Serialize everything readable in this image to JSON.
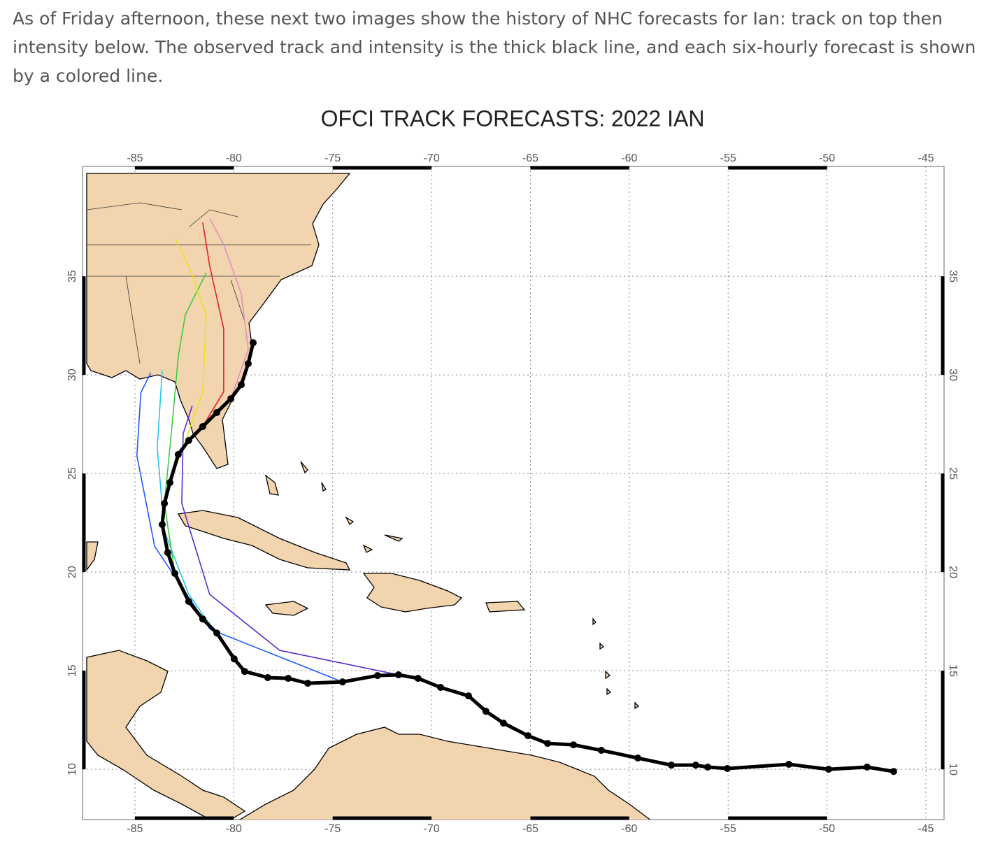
{
  "text": "As of Friday afternoon, these next two images show the history of NHC forecasts for Ian: track on top then intensity below.  The observed track and intensity is the thick black line, and each six-hourly forecast is shown by a colored line.",
  "chart_data": {
    "type": "line",
    "title": "OFCI TRACK FORECASTS: 2022 IAN",
    "xlim": [
      -87.65,
      -44.08
    ],
    "ylim": [
      7.45,
      40.57
    ],
    "xticks": [
      -85,
      -80,
      -75,
      -70,
      -65,
      -60,
      -55,
      -50,
      -45
    ],
    "yticks": [
      10,
      15,
      20,
      25,
      30,
      35
    ],
    "grid": true,
    "series": [
      {
        "color": "#1e5cff",
        "x": [
          -74.5,
          -81.2,
          -84.0,
          -84.9,
          -84.7,
          -84.2
        ],
        "values": [
          14.43,
          17.1,
          21.3,
          25.9,
          29.1,
          30.1
        ]
      },
      {
        "color": "#5a2bd0",
        "x": [
          -71.67,
          -77.68,
          -81.22,
          -82.63,
          -82.56,
          -82.1
        ],
        "values": [
          14.79,
          16.03,
          18.87,
          23.48,
          27.02,
          28.44
        ]
      },
      {
        "color": "#22c8e8",
        "x": [
          -79.98,
          -82.28,
          -83.51,
          -83.87,
          -83.62
        ],
        "values": [
          15.6,
          18.87,
          22.06,
          26.31,
          30.21
        ]
      },
      {
        "color": "#3ccc3c",
        "x": [
          -82.98,
          -83.51,
          -83.16,
          -82.81,
          -82.45,
          -81.39
        ],
        "values": [
          19.93,
          23.48,
          27.02,
          30.92,
          33.05,
          35.18
        ]
      },
      {
        "color": "#e8e020",
        "x": [
          -83.23,
          -82.56,
          -81.57,
          -81.39,
          -82.28,
          -82.98
        ],
        "values": [
          24.54,
          26.31,
          29.15,
          33.05,
          35.53,
          36.95
        ]
      },
      {
        "color": "#e82020",
        "x": [
          -81.57,
          -80.51,
          -80.51,
          -81.22,
          -81.57
        ],
        "values": [
          27.38,
          29.15,
          32.34,
          35.53,
          37.73
        ]
      },
      {
        "color": "#e090c0",
        "x": [
          -80.15,
          -79.27,
          -79.62,
          -80.51,
          -81.22
        ],
        "values": [
          28.79,
          31.28,
          34.11,
          36.6,
          37.94
        ]
      },
      {
        "color": "#000000",
        "markers": true,
        "x": [
          -46.63,
          -47.97,
          -49.92,
          -51.93,
          -55.04,
          -56.03,
          -56.64,
          -57.87,
          -59.57,
          -61.41,
          -62.82,
          -64.13,
          -65.12,
          -66.36,
          -67.25,
          -68.13,
          -69.54,
          -70.68,
          -71.67,
          -72.73,
          -74.5,
          -76.26,
          -77.25,
          -78.28,
          -79.45,
          -79.98,
          -80.86,
          -81.57,
          -82.28,
          -82.98,
          -83.34,
          -83.62,
          -83.51,
          -83.23,
          -82.81,
          -82.28,
          -81.57,
          -80.86,
          -80.15,
          -79.62,
          -79.27,
          -79.02
        ],
        "values": [
          9.89,
          10.11,
          10.0,
          10.25,
          10.04,
          10.11,
          10.21,
          10.21,
          10.57,
          10.96,
          11.24,
          11.31,
          11.7,
          12.34,
          12.94,
          13.72,
          14.15,
          14.61,
          14.79,
          14.75,
          14.43,
          14.36,
          14.61,
          14.65,
          14.96,
          15.6,
          16.91,
          17.62,
          18.51,
          19.93,
          20.99,
          22.41,
          23.48,
          24.54,
          25.96,
          26.67,
          27.38,
          28.09,
          28.79,
          29.5,
          30.57,
          31.63
        ]
      }
    ]
  }
}
